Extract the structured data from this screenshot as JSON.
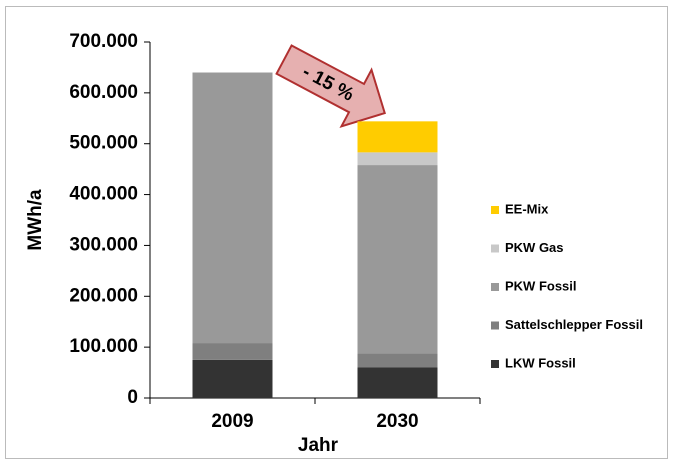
{
  "chart_data": {
    "type": "stacked-bar",
    "y_label": "MWh/a",
    "x_label": "Jahr",
    "annotation": "- 15 %",
    "categories": [
      "2009",
      "2030"
    ],
    "series": [
      {
        "name": "LKW Fossil",
        "color": "#333333",
        "values": [
          75000,
          60000
        ]
      },
      {
        "name": "Sattelschlepper Fossil",
        "color": "#7f7f7f",
        "values": [
          33000,
          28000
        ]
      },
      {
        "name": "PKW Fossil",
        "color": "#999999",
        "values": [
          532000,
          370000
        ]
      },
      {
        "name": "PKW Gas",
        "color": "#c8c8c8",
        "values": [
          0,
          25000
        ]
      },
      {
        "name": "EE-Mix",
        "color": "#ffcc00",
        "values": [
          0,
          61000
        ]
      }
    ],
    "ylim": [
      0,
      700000
    ],
    "yticks": [
      0,
      {
        "value": 100000,
        "label": "100.000"
      },
      {
        "value": 200000,
        "label": "200.000"
      },
      {
        "value": 300000,
        "label": "300.000"
      },
      {
        "value": 400000,
        "label": "400.000"
      },
      {
        "value": 500000,
        "label": "500.000"
      },
      {
        "value": 600000,
        "label": "600.000"
      },
      {
        "value": 700000,
        "label": "700.000"
      }
    ],
    "legend": "right"
  }
}
